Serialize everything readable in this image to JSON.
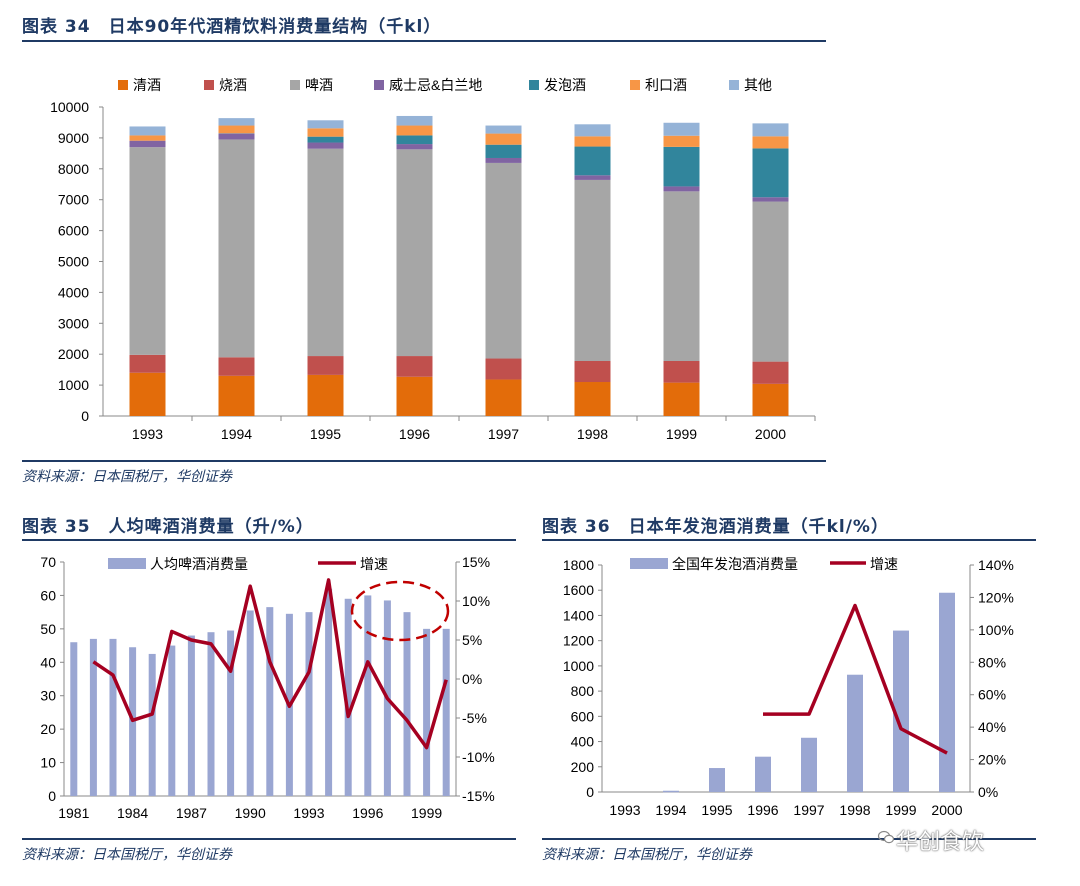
{
  "chart1": {
    "label": "图表 34",
    "title": "日本90年代酒精饮料消费量结构（千kl）",
    "source": "资料来源：日本国税厅，华创证券"
  },
  "chart2": {
    "label": "图表 35",
    "title": "人均啤酒消费量（升/%）",
    "source": "资料来源：日本国税厅，华创证券"
  },
  "chart3": {
    "label": "图表 36",
    "title": "日本年发泡酒消费量（千kl/%）",
    "source": "资料来源：日本国税厅，华创证券"
  },
  "watermark": "华创食饮",
  "chart_data": [
    {
      "type": "bar",
      "stacked": true,
      "title": "日本90年代酒精饮料消费量结构（千kl）",
      "categories": [
        "1993",
        "1994",
        "1995",
        "1996",
        "1997",
        "1998",
        "1999",
        "2000"
      ],
      "ylim": [
        0,
        10000
      ],
      "yticks": [
        0,
        1000,
        2000,
        3000,
        4000,
        5000,
        6000,
        7000,
        8000,
        9000,
        10000
      ],
      "legend_position": "top",
      "series": [
        {
          "name": "清酒",
          "color": "#e36c0a",
          "values": [
            1400,
            1300,
            1330,
            1270,
            1180,
            1100,
            1080,
            1040
          ]
        },
        {
          "name": "烧酒",
          "color": "#c0504d",
          "values": [
            580,
            600,
            610,
            670,
            680,
            680,
            700,
            720
          ]
        },
        {
          "name": "啤酒",
          "color": "#a6a6a6",
          "values": [
            6720,
            7050,
            6710,
            6690,
            6330,
            5860,
            5490,
            5180
          ]
        },
        {
          "name": "威士忌&白兰地",
          "color": "#8064a2",
          "values": [
            210,
            190,
            200,
            170,
            160,
            150,
            160,
            140
          ]
        },
        {
          "name": "发泡酒",
          "color": "#31859c",
          "values": [
            0,
            10,
            190,
            280,
            430,
            930,
            1280,
            1580
          ]
        },
        {
          "name": "利口酒",
          "color": "#f79646",
          "values": [
            170,
            250,
            270,
            320,
            360,
            330,
            360,
            390
          ]
        },
        {
          "name": "其他",
          "color": "#95b3d7",
          "values": [
            290,
            240,
            260,
            310,
            260,
            390,
            420,
            420
          ]
        }
      ]
    },
    {
      "type": "bar+line",
      "title": "人均啤酒消费量（升/%）",
      "x": [
        1981,
        1982,
        1983,
        1984,
        1985,
        1986,
        1987,
        1988,
        1989,
        1990,
        1991,
        1992,
        1993,
        1994,
        1995,
        1996,
        1997,
        1998,
        1999,
        2000
      ],
      "xtick_labels": [
        "1981",
        "1984",
        "1987",
        "1990",
        "1993",
        "1996",
        "1999"
      ],
      "bar_series": {
        "name": "人均啤酒消费量",
        "color": "#9aa6d2",
        "values": [
          46,
          47,
          47,
          44.5,
          42.5,
          45,
          48,
          49,
          49.5,
          55.5,
          56.5,
          54.5,
          55,
          62,
          59,
          60,
          58.5,
          55,
          50,
          50
        ]
      },
      "line_series": {
        "name": "增速",
        "color": "#a50021",
        "values": [
          null,
          2.2,
          0.5,
          -5.3,
          -4.5,
          6.1,
          5,
          4.5,
          1,
          11.9,
          2.2,
          -3.5,
          0.9,
          12.7,
          -4.8,
          2.2,
          -2.5,
          -5.3,
          -8.8,
          -0.1
        ]
      },
      "ylim_left": [
        0,
        70
      ],
      "yticks_left": [
        0,
        10,
        20,
        30,
        40,
        50,
        60,
        70
      ],
      "ylim_right": [
        -15,
        15
      ],
      "yticks_right": [
        "-15%",
        "-10%",
        "-5%",
        "0%",
        "5%",
        "10%",
        "15%"
      ],
      "annotation": "red dashed ellipse around 1995–1999"
    },
    {
      "type": "bar+line",
      "title": "日本年发泡酒消费量（千kl/%）",
      "categories": [
        "1993",
        "1994",
        "1995",
        "1996",
        "1997",
        "1998",
        "1999",
        "2000"
      ],
      "bar_series": {
        "name": "全国年发泡酒消费量",
        "color": "#9aa6d2",
        "values": [
          0,
          10,
          190,
          280,
          430,
          930,
          1280,
          1580
        ]
      },
      "line_series": {
        "name": "增速",
        "color": "#a50021",
        "values": [
          null,
          null,
          null,
          48,
          48,
          115,
          39,
          24
        ]
      },
      "ylim_left": [
        0,
        1800
      ],
      "yticks_left": [
        0,
        200,
        400,
        600,
        800,
        1000,
        1200,
        1400,
        1600,
        1800
      ],
      "ylim_right": [
        0,
        140
      ],
      "yticks_right": [
        "0%",
        "20%",
        "40%",
        "60%",
        "80%",
        "100%",
        "120%",
        "140%"
      ]
    }
  ]
}
